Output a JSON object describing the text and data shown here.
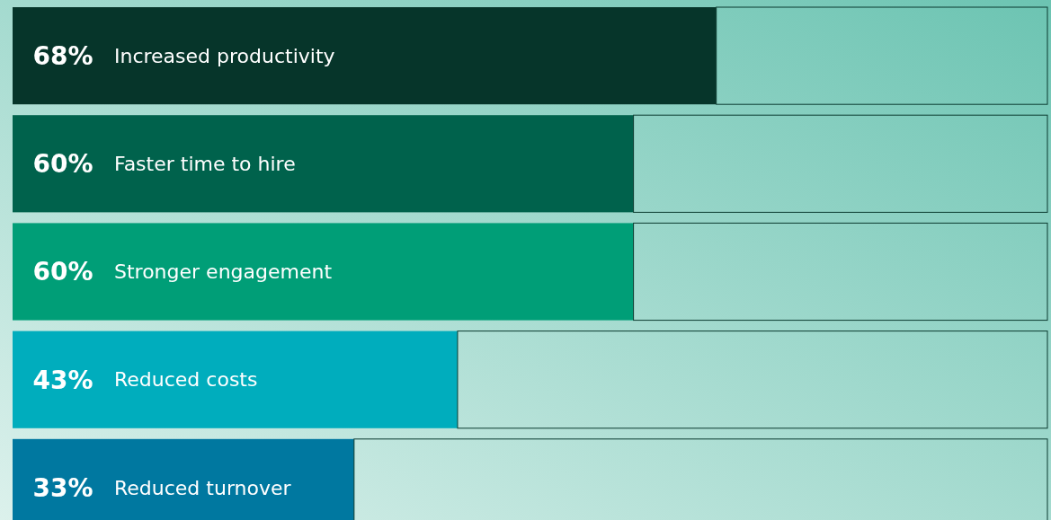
{
  "chart_data": {
    "type": "bar",
    "orientation": "horizontal",
    "stacked": true,
    "categories": [
      "Increased productivity",
      "Faster time to hire",
      "Stronger engagement",
      "Reduced costs",
      "Reduced turnover"
    ],
    "series": [
      {
        "colors": [
          "#06352a",
          "#00624c",
          "#009e77",
          "#00adbd",
          "#0078a0"
        ],
        "values": [
          68,
          60,
          60,
          43,
          33
        ],
        "value_labels": [
          "68%",
          "60%",
          "60%",
          "43%",
          "33%"
        ]
      },
      {
        "color": "#0b3b30",
        "values": [
          32,
          40,
          40,
          57,
          67
        ]
      }
    ],
    "xlim": [
      0,
      100
    ],
    "tick_labels": false
  }
}
